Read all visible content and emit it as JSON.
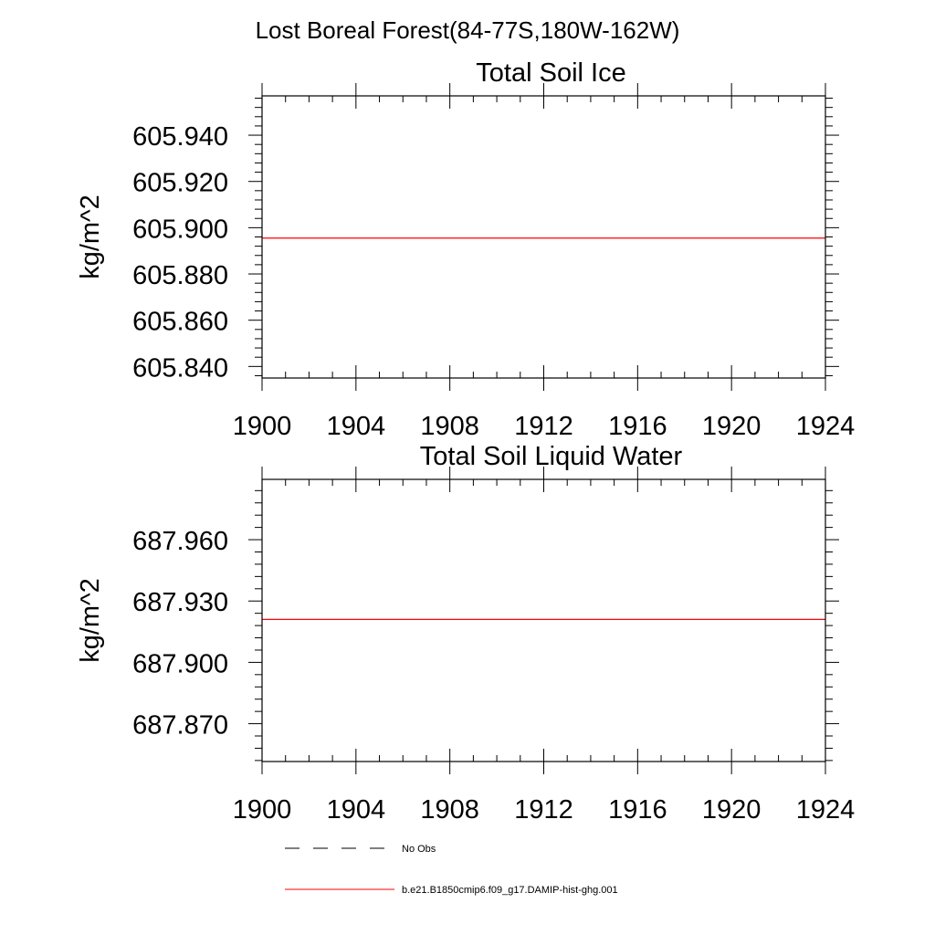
{
  "figure": {
    "title": "Lost Boreal Forest(84-77S,180W-162W)"
  },
  "chart_data": [
    {
      "type": "line",
      "title": "Total Soil Ice",
      "ylabel": "kg/m^2",
      "xlabel": "",
      "xlim": [
        1900,
        1924
      ],
      "ylim": [
        605.835,
        605.957
      ],
      "x_ticks": [
        1900,
        1904,
        1908,
        1912,
        1916,
        1920,
        1924
      ],
      "y_ticks": [
        605.84,
        605.86,
        605.88,
        605.9,
        605.92,
        605.94
      ],
      "y_tick_labels": [
        "605.840",
        "605.860",
        "605.880",
        "605.900",
        "605.920",
        "605.940"
      ],
      "x_minor_step": 1,
      "y_minor_step": 0.004,
      "series": [
        {
          "name": "b.e21.B1850cmip6.f09_g17.DAMIP-hist-ghg.001",
          "color": "#ff0000",
          "dash": "solid",
          "x": [
            1900,
            1924
          ],
          "y": [
            605.8955,
            605.8955
          ]
        }
      ]
    },
    {
      "type": "line",
      "title": "Total Soil Liquid Water",
      "ylabel": "kg/m^2",
      "xlabel": "",
      "xlim": [
        1900,
        1924
      ],
      "ylim": [
        687.8515,
        687.9895
      ],
      "x_ticks": [
        1900,
        1904,
        1908,
        1912,
        1916,
        1920,
        1924
      ],
      "y_ticks": [
        687.87,
        687.9,
        687.93,
        687.96
      ],
      "y_tick_labels": [
        "687.870",
        "687.900",
        "687.930",
        "687.960"
      ],
      "x_minor_step": 1,
      "y_minor_step": 0.006,
      "series": [
        {
          "name": "b.e21.B1850cmip6.f09_g17.DAMIP-hist-ghg.001",
          "color": "#ff0000",
          "dash": "solid",
          "x": [
            1900,
            1924
          ],
          "y": [
            687.921,
            687.921
          ]
        }
      ]
    }
  ],
  "legend": {
    "placement": "bottom",
    "items": [
      {
        "label": "No Obs",
        "color": "#000000",
        "dash": "dashed"
      },
      {
        "label": "b.e21.B1850cmip6.f09_g17.DAMIP-hist-ghg.001",
        "color": "#ff0000",
        "dash": "solid"
      }
    ]
  }
}
